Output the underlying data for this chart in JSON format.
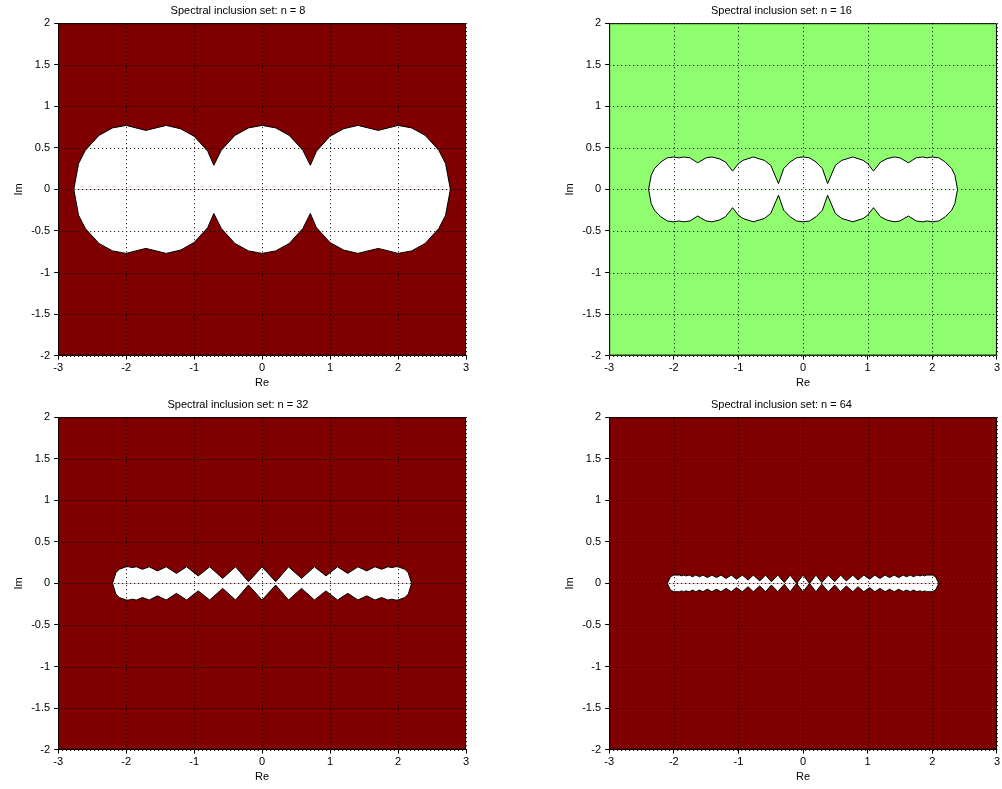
{
  "chart_data": [
    {
      "type": "area",
      "title": "Spectral inclusion set: n = 8",
      "xlabel": "Re",
      "ylabel": "Im",
      "xlim": [
        -3,
        3
      ],
      "ylim": [
        -2,
        2
      ],
      "xticks": [
        -3,
        -2,
        -1,
        0,
        1,
        2,
        3
      ],
      "yticks": [
        -2,
        -1.5,
        -1,
        -0.5,
        0,
        0.5,
        1,
        1.5,
        2
      ],
      "grid": true,
      "legend": false,
      "bands": [
        {
          "axis": "x",
          "from": -3,
          "to": 3,
          "color": "#800000"
        }
      ],
      "x": [
        -2.77,
        -2.7,
        -2.6,
        -2.4,
        -2.2,
        -2,
        -1.71,
        -1.41,
        -1.2,
        -1,
        -0.8,
        -0.71,
        -0.6,
        -0.4,
        -0.2,
        0,
        0.2,
        0.4,
        0.6,
        0.71,
        0.8,
        1,
        1.2,
        1.41,
        1.71,
        2,
        2.2,
        2.4,
        2.6,
        2.7,
        2.77
      ],
      "series": [
        {
          "color": "#ffffff",
          "values": [
            0,
            0.31,
            0.47,
            0.65,
            0.74,
            0.77,
            0.71,
            0.77,
            0.73,
            0.64,
            0.46,
            0.29,
            0.47,
            0.65,
            0.74,
            0.77,
            0.74,
            0.65,
            0.47,
            0.29,
            0.46,
            0.64,
            0.73,
            0.77,
            0.71,
            0.77,
            0.74,
            0.65,
            0.47,
            0.31,
            0
          ]
        },
        {
          "color": "#ffffff",
          "values": [
            0,
            -0.31,
            -0.47,
            -0.65,
            -0.74,
            -0.77,
            -0.71,
            -0.77,
            -0.73,
            -0.64,
            -0.46,
            -0.29,
            -0.47,
            -0.65,
            -0.74,
            -0.77,
            -0.74,
            -0.65,
            -0.47,
            -0.29,
            -0.46,
            -0.64,
            -0.73,
            -0.77,
            -0.71,
            -0.77,
            -0.74,
            -0.65,
            -0.47,
            -0.31,
            0
          ]
        }
      ]
    },
    {
      "type": "area",
      "title": "Spectral inclusion set: n = 16",
      "xlabel": "Re",
      "ylabel": "Im",
      "xlim": [
        -3,
        3
      ],
      "ylim": [
        -2,
        2
      ],
      "xticks": [
        -3,
        -2,
        -1,
        0,
        1,
        2,
        3
      ],
      "yticks": [
        -2,
        -1.5,
        -1,
        -0.5,
        0,
        0.5,
        1,
        1.5,
        2
      ],
      "grid": true,
      "legend": false,
      "bands": [
        {
          "axis": "x",
          "from": -3,
          "to": 3,
          "color": "#8fff6f"
        }
      ],
      "x": [
        -2.39,
        -2.35,
        -2.3,
        -2.2,
        -2.1,
        -2,
        -1.92,
        -1.85,
        -1.75,
        -1.63,
        -1.5,
        -1.41,
        -1.3,
        -1.2,
        -1.09,
        -1,
        -0.93,
        -0.77,
        -0.6,
        -0.5,
        -0.38,
        -0.3,
        -0.2,
        -0.1,
        0,
        0.1,
        0.2,
        0.3,
        0.38,
        0.5,
        0.6,
        0.77,
        0.93,
        1,
        1.09,
        1.2,
        1.3,
        1.41,
        1.5,
        1.63,
        1.75,
        1.85,
        1.92,
        2,
        2.1,
        2.2,
        2.3,
        2.35,
        2.39
      ],
      "series": [
        {
          "color": "#ffffff",
          "values": [
            0,
            0.17,
            0.25,
            0.33,
            0.38,
            0.39,
            0.38,
            0.39,
            0.38,
            0.32,
            0.38,
            0.39,
            0.37,
            0.33,
            0.22,
            0.31,
            0.35,
            0.39,
            0.35,
            0.29,
            0.07,
            0.25,
            0.33,
            0.38,
            0.39,
            0.38,
            0.33,
            0.25,
            0.07,
            0.29,
            0.35,
            0.39,
            0.35,
            0.31,
            0.22,
            0.33,
            0.37,
            0.39,
            0.38,
            0.32,
            0.38,
            0.39,
            0.38,
            0.39,
            0.38,
            0.33,
            0.25,
            0.17,
            0
          ]
        },
        {
          "color": "#ffffff",
          "values": [
            0,
            -0.17,
            -0.25,
            -0.33,
            -0.38,
            -0.39,
            -0.38,
            -0.39,
            -0.38,
            -0.32,
            -0.38,
            -0.39,
            -0.37,
            -0.33,
            -0.22,
            -0.31,
            -0.35,
            -0.39,
            -0.35,
            -0.29,
            -0.07,
            -0.25,
            -0.33,
            -0.38,
            -0.39,
            -0.38,
            -0.33,
            -0.25,
            -0.07,
            -0.29,
            -0.35,
            -0.39,
            -0.35,
            -0.31,
            -0.22,
            -0.33,
            -0.37,
            -0.39,
            -0.38,
            -0.32,
            -0.38,
            -0.39,
            -0.38,
            -0.39,
            -0.38,
            -0.33,
            -0.25,
            -0.17,
            0
          ]
        }
      ]
    },
    {
      "type": "area",
      "title": "Spectral inclusion set: n = 32",
      "xlabel": "Re",
      "ylabel": "Im",
      "xlim": [
        -3,
        3
      ],
      "ylim": [
        -2,
        2
      ],
      "xticks": [
        -3,
        -2,
        -1,
        0,
        1,
        2,
        3
      ],
      "yticks": [
        -2,
        -1.5,
        -1,
        -0.5,
        0,
        0.5,
        1,
        1.5,
        2
      ],
      "grid": true,
      "legend": false,
      "bands": [
        {
          "axis": "x",
          "from": -3,
          "to": 3,
          "color": "#800000"
        }
      ],
      "x": [
        -2.2,
        -2.15,
        -2.1,
        -2,
        -1.96,
        -1.91,
        -1.85,
        -1.76,
        -1.66,
        -1.54,
        -1.41,
        -1.26,
        -1.11,
        -0.94,
        -0.77,
        -0.58,
        -0.39,
        -0.2,
        0,
        0.2,
        0.39,
        0.58,
        0.77,
        0.94,
        1.11,
        1.26,
        1.41,
        1.54,
        1.66,
        1.76,
        1.85,
        1.91,
        1.96,
        2,
        2.1,
        2.15,
        2.2
      ],
      "series": [
        {
          "color": "#ffffff",
          "values": [
            0,
            0.13,
            0.17,
            0.2,
            0.2,
            0.19,
            0.2,
            0.17,
            0.2,
            0.15,
            0.2,
            0.12,
            0.2,
            0.09,
            0.2,
            0.06,
            0.2,
            0.02,
            0.2,
            0.02,
            0.2,
            0.06,
            0.2,
            0.09,
            0.2,
            0.12,
            0.2,
            0.15,
            0.2,
            0.17,
            0.2,
            0.19,
            0.2,
            0.2,
            0.17,
            0.13,
            0
          ]
        },
        {
          "color": "#ffffff",
          "values": [
            0,
            -0.13,
            -0.17,
            -0.2,
            -0.2,
            -0.19,
            -0.2,
            -0.17,
            -0.2,
            -0.15,
            -0.2,
            -0.12,
            -0.2,
            -0.09,
            -0.2,
            -0.06,
            -0.2,
            -0.02,
            -0.2,
            -0.02,
            -0.2,
            -0.06,
            -0.2,
            -0.09,
            -0.2,
            -0.12,
            -0.2,
            -0.15,
            -0.2,
            -0.17,
            -0.2,
            -0.19,
            -0.2,
            -0.2,
            -0.17,
            -0.13,
            0
          ]
        }
      ]
    },
    {
      "type": "area",
      "title": "Spectral inclusion set: n = 64",
      "xlabel": "Re",
      "ylabel": "Im",
      "xlim": [
        -3,
        3
      ],
      "ylim": [
        -2,
        2
      ],
      "xticks": [
        -3,
        -2,
        -1,
        0,
        1,
        2,
        3
      ],
      "yticks": [
        -2,
        -1.5,
        -1,
        -0.5,
        0,
        0.5,
        1,
        1.5,
        2
      ],
      "grid": true,
      "legend": false,
      "bands": [
        {
          "axis": "x",
          "from": -3,
          "to": 3,
          "color": "#800000"
        }
      ],
      "x": [
        -2.1,
        -2.05,
        -2,
        -1.91,
        -1.88,
        -1.85,
        -1.81,
        -1.76,
        -1.71,
        -1.66,
        -1.6,
        -1.55,
        -1.48,
        -1.41,
        -1.34,
        -1.27,
        -1.19,
        -1.11,
        -1.03,
        -0.94,
        -0.85,
        -0.77,
        -0.67,
        -0.58,
        -0.49,
        -0.39,
        -0.29,
        -0.2,
        -0.1,
        0,
        0.1,
        0.2,
        0.29,
        0.39,
        0.49,
        0.58,
        0.67,
        0.77,
        0.85,
        0.94,
        1.03,
        1.11,
        1.19,
        1.27,
        1.34,
        1.41,
        1.48,
        1.55,
        1.6,
        1.66,
        1.71,
        1.76,
        1.81,
        1.85,
        1.88,
        1.91,
        2,
        2.05,
        2.1
      ],
      "series": [
        {
          "color": "#ffffff",
          "values": [
            0,
            0.08,
            0.1,
            0.1,
            0.09,
            0.1,
            0.09,
            0.1,
            0.08,
            0.1,
            0.08,
            0.1,
            0.07,
            0.1,
            0.07,
            0.1,
            0.06,
            0.1,
            0.05,
            0.1,
            0.04,
            0.1,
            0.03,
            0.1,
            0.02,
            0.1,
            0.01,
            0.1,
            0,
            0.1,
            0,
            0.1,
            0.01,
            0.1,
            0.02,
            0.1,
            0.03,
            0.1,
            0.04,
            0.1,
            0.05,
            0.1,
            0.06,
            0.1,
            0.07,
            0.1,
            0.07,
            0.1,
            0.08,
            0.1,
            0.08,
            0.1,
            0.09,
            0.1,
            0.09,
            0.1,
            0.1,
            0.08,
            0
          ]
        },
        {
          "color": "#ffffff",
          "values": [
            0,
            -0.08,
            -0.1,
            -0.1,
            -0.09,
            -0.1,
            -0.09,
            -0.1,
            -0.08,
            -0.1,
            -0.08,
            -0.1,
            -0.07,
            -0.1,
            -0.07,
            -0.1,
            -0.06,
            -0.1,
            -0.05,
            -0.1,
            -0.04,
            -0.1,
            -0.03,
            -0.1,
            -0.02,
            -0.1,
            -0.01,
            -0.1,
            0,
            -0.1,
            0,
            -0.1,
            -0.01,
            -0.1,
            -0.02,
            -0.1,
            -0.03,
            -0.1,
            -0.04,
            -0.1,
            -0.05,
            -0.1,
            -0.06,
            -0.1,
            -0.07,
            -0.1,
            -0.07,
            -0.1,
            -0.08,
            -0.1,
            -0.08,
            -0.1,
            -0.09,
            -0.1,
            -0.09,
            -0.1,
            -0.1,
            -0.08,
            0
          ]
        }
      ]
    }
  ]
}
